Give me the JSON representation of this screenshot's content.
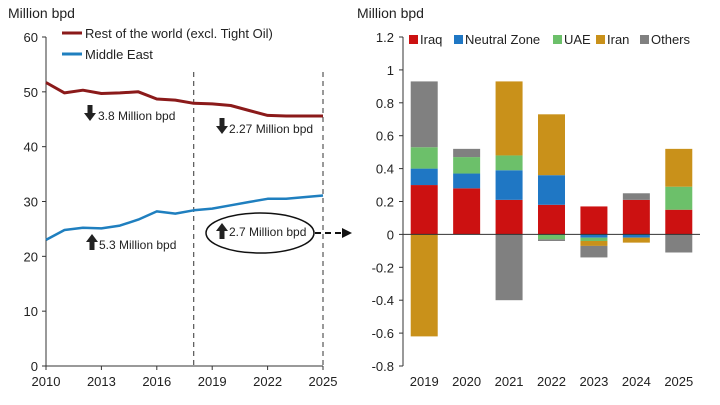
{
  "chart_data": [
    {
      "type": "line",
      "ylabel": "Million bpd",
      "ylim": [
        0,
        60
      ],
      "yticks": [
        0,
        10,
        20,
        30,
        40,
        50,
        60
      ],
      "xlim": [
        2010,
        2025
      ],
      "xticks": [
        2010,
        2013,
        2016,
        2019,
        2022,
        2025
      ],
      "x": [
        2010,
        2011,
        2012,
        2013,
        2014,
        2015,
        2016,
        2017,
        2018,
        2019,
        2020,
        2021,
        2022,
        2023,
        2024,
        2025
      ],
      "series": [
        {
          "name": "Rest of the world (excl. Tight Oil)",
          "color": "#8b1a1a",
          "values": [
            51.7,
            49.8,
            50.3,
            49.7,
            49.8,
            50.0,
            48.7,
            48.5,
            47.9,
            47.8,
            47.5,
            46.6,
            45.7,
            45.6,
            45.6,
            45.6
          ]
        },
        {
          "name": "Middle East",
          "color": "#1f7fbf",
          "values": [
            23.0,
            24.8,
            25.2,
            25.1,
            25.6,
            26.7,
            28.2,
            27.8,
            28.4,
            28.7,
            29.3,
            29.9,
            30.5,
            30.5,
            30.8,
            31.1
          ]
        }
      ],
      "vlines": [
        2018,
        2025
      ],
      "annotations": [
        {
          "text": "3.8 Million bpd",
          "arrow": "down"
        },
        {
          "text": "2.27 Million bpd",
          "arrow": "down"
        },
        {
          "text": "5.3 Million bpd",
          "arrow": "up"
        },
        {
          "text": "2.7 Million bpd",
          "arrow": "up"
        }
      ]
    },
    {
      "type": "bar",
      "stacked": true,
      "ylabel": "Million bpd",
      "ylim": [
        -0.8,
        1.2
      ],
      "yticks": [
        1.2,
        1.0,
        0.8,
        0.6,
        0.4,
        0.2,
        0,
        -0.2,
        -0.4,
        -0.6,
        -0.8
      ],
      "ytick_labels": [
        "1.2",
        "1",
        "0.8",
        "0.6",
        "0.4",
        "0.2",
        "0",
        "-0.2",
        "-0.4",
        "-0.6",
        "-0.8"
      ],
      "categories": [
        "2019",
        "2020",
        "2021",
        "2022",
        "2023",
        "2024",
        "2025"
      ],
      "series": [
        {
          "name": "Iraq",
          "color": "#cc1111",
          "values": [
            0.3,
            0.28,
            0.21,
            0.18,
            0.17,
            0.21,
            0.15
          ]
        },
        {
          "name": "Neutral Zone",
          "color": "#1f77c4",
          "values": [
            0.1,
            0.09,
            0.18,
            0.18,
            -0.02,
            -0.02,
            0.0
          ]
        },
        {
          "name": "UAE",
          "color": "#6cc06a",
          "values": [
            0.13,
            0.1,
            0.09,
            -0.03,
            -0.02,
            0.0,
            0.14
          ]
        },
        {
          "name": "Iran",
          "color": "#c9911a",
          "values": [
            -0.62,
            0.0,
            0.45,
            0.37,
            -0.03,
            -0.03,
            0.23
          ]
        },
        {
          "name": "Others",
          "color": "#808080",
          "values": [
            0.4,
            0.05,
            -0.4,
            -0.01,
            -0.07,
            0.04,
            -0.11
          ]
        }
      ]
    }
  ]
}
